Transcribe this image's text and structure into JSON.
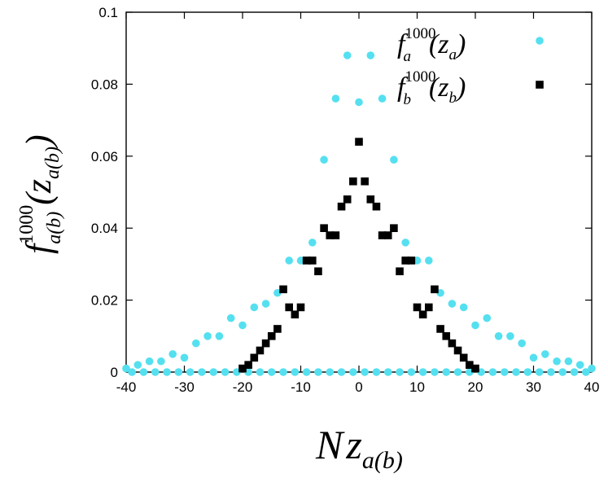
{
  "chart_data": {
    "type": "scatter",
    "title": "",
    "xlabel": {
      "base": "N",
      "var": "z",
      "sub": "a(b)"
    },
    "ylabel": {
      "base": "f",
      "sup": "1000",
      "sub": "a(b)",
      "arg": "(z",
      "argsub": "a(b)",
      "close": ")"
    },
    "xlim": [
      -40,
      40
    ],
    "ylim": [
      0,
      0.1
    ],
    "xticks": [
      -40,
      -30,
      -20,
      -10,
      0,
      10,
      20,
      30,
      40
    ],
    "yticks": [
      0,
      0.02,
      0.04,
      0.06,
      0.08,
      0.1
    ],
    "xtick_labels": [
      "-40",
      "-30",
      "-20",
      "-10",
      "0",
      "10",
      "20",
      "30",
      "40"
    ],
    "ytick_labels": [
      "0",
      "0.02",
      "0.04",
      "0.06",
      "0.08",
      "0.1"
    ],
    "grid": false,
    "legend_position": "top-right",
    "series": [
      {
        "label": {
          "base": "f",
          "sup": "1000",
          "sub": "a",
          "arg": "(z",
          "argsub": "a",
          "close": ")"
        },
        "color": "#55e0f0",
        "marker": "circle",
        "points": [
          [
            -40,
            0.001
          ],
          [
            -38,
            0.002
          ],
          [
            -36,
            0.003
          ],
          [
            -34,
            0.003
          ],
          [
            -32,
            0.005
          ],
          [
            -30,
            0.004
          ],
          [
            -28,
            0.008
          ],
          [
            -26,
            0.01
          ],
          [
            -24,
            0.01
          ],
          [
            -22,
            0.015
          ],
          [
            -20,
            0.013
          ],
          [
            -18,
            0.018
          ],
          [
            -16,
            0.019
          ],
          [
            -14,
            0.022
          ],
          [
            -12,
            0.031
          ],
          [
            -10,
            0.031
          ],
          [
            -8,
            0.036
          ],
          [
            -6,
            0.059
          ],
          [
            -4,
            0.076
          ],
          [
            -2,
            0.088
          ],
          [
            0,
            0.075
          ],
          [
            2,
            0.088
          ],
          [
            4,
            0.076
          ],
          [
            6,
            0.059
          ],
          [
            8,
            0.036
          ],
          [
            10,
            0.031
          ],
          [
            12,
            0.031
          ],
          [
            14,
            0.022
          ],
          [
            16,
            0.019
          ],
          [
            18,
            0.018
          ],
          [
            20,
            0.013
          ],
          [
            22,
            0.015
          ],
          [
            24,
            0.01
          ],
          [
            26,
            0.01
          ],
          [
            28,
            0.008
          ],
          [
            30,
            0.004
          ],
          [
            32,
            0.005
          ],
          [
            34,
            0.003
          ],
          [
            36,
            0.003
          ],
          [
            38,
            0.002
          ],
          [
            40,
            0.001
          ],
          [
            -39,
            0
          ],
          [
            -37,
            0
          ],
          [
            -35,
            0
          ],
          [
            -33,
            0
          ],
          [
            -31,
            0
          ],
          [
            -29,
            0
          ],
          [
            -27,
            0
          ],
          [
            -25,
            0
          ],
          [
            -23,
            0
          ],
          [
            -21,
            0
          ],
          [
            -19,
            0
          ],
          [
            -17,
            0
          ],
          [
            -15,
            0
          ],
          [
            -13,
            0
          ],
          [
            -11,
            0
          ],
          [
            -9,
            0
          ],
          [
            -7,
            0
          ],
          [
            -5,
            0
          ],
          [
            -3,
            0
          ],
          [
            -1,
            0
          ],
          [
            1,
            0
          ],
          [
            3,
            0
          ],
          [
            5,
            0
          ],
          [
            7,
            0
          ],
          [
            9,
            0
          ],
          [
            11,
            0
          ],
          [
            13,
            0
          ],
          [
            15,
            0
          ],
          [
            17,
            0
          ],
          [
            19,
            0
          ],
          [
            21,
            0
          ],
          [
            23,
            0
          ],
          [
            25,
            0
          ],
          [
            27,
            0
          ],
          [
            29,
            0
          ],
          [
            31,
            0
          ],
          [
            33,
            0
          ],
          [
            35,
            0
          ],
          [
            37,
            0
          ],
          [
            39,
            0
          ]
        ]
      },
      {
        "label": {
          "base": "f",
          "sup": "1000",
          "sub": "b",
          "arg": "(z",
          "argsub": "b",
          "close": ")"
        },
        "color": "#000000",
        "marker": "square",
        "points": [
          [
            -20,
            0.001
          ],
          [
            -19,
            0.002
          ],
          [
            -18,
            0.004
          ],
          [
            -17,
            0.006
          ],
          [
            -16,
            0.008
          ],
          [
            -15,
            0.01
          ],
          [
            -14,
            0.012
          ],
          [
            -13,
            0.023
          ],
          [
            -12,
            0.018
          ],
          [
            -11,
            0.016
          ],
          [
            -10,
            0.018
          ],
          [
            -9,
            0.031
          ],
          [
            -8,
            0.031
          ],
          [
            -7,
            0.028
          ],
          [
            -6,
            0.04
          ],
          [
            -5,
            0.038
          ],
          [
            -4,
            0.038
          ],
          [
            -3,
            0.046
          ],
          [
            -2,
            0.048
          ],
          [
            -1,
            0.053
          ],
          [
            0,
            0.064
          ],
          [
            1,
            0.053
          ],
          [
            2,
            0.048
          ],
          [
            3,
            0.046
          ],
          [
            4,
            0.038
          ],
          [
            5,
            0.038
          ],
          [
            6,
            0.04
          ],
          [
            7,
            0.028
          ],
          [
            8,
            0.031
          ],
          [
            9,
            0.031
          ],
          [
            10,
            0.018
          ],
          [
            11,
            0.016
          ],
          [
            12,
            0.018
          ],
          [
            13,
            0.023
          ],
          [
            14,
            0.012
          ],
          [
            15,
            0.01
          ],
          [
            16,
            0.008
          ],
          [
            17,
            0.006
          ],
          [
            18,
            0.004
          ],
          [
            19,
            0.002
          ],
          [
            20,
            0.001
          ]
        ]
      }
    ]
  }
}
